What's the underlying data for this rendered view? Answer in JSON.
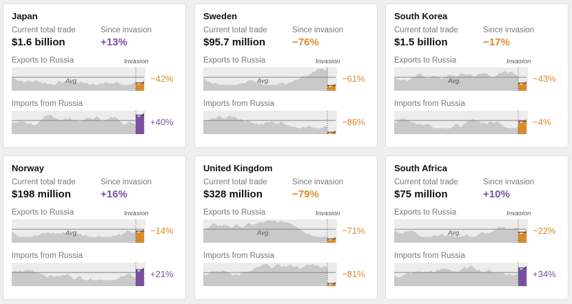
{
  "labels": {
    "current": "Current total trade",
    "since": "Since invasion",
    "exports": "Exports to Russia",
    "imports": "Imports from Russia",
    "invasion": "Invasion",
    "avg": "Avg."
  },
  "colors": {
    "up": "#7b50a3",
    "down": "#d98a2b",
    "area": "#c9c9c9",
    "bg": "#ececec",
    "avg": "#888888"
  },
  "cards": [
    {
      "country": "Japan",
      "total": "$1.6 billion",
      "since": "+13%",
      "exports_change": "−42%",
      "imports_change": "+40%"
    },
    {
      "country": "Sweden",
      "total": "$95.7 million",
      "since": "−76%",
      "exports_change": "−61%",
      "imports_change": "−86%"
    },
    {
      "country": "South Korea",
      "total": "$1.5 billion",
      "since": "−17%",
      "exports_change": "−43%",
      "imports_change": "−4%"
    },
    {
      "country": "Norway",
      "total": "$198 million",
      "since": "+16%",
      "exports_change": "−14%",
      "imports_change": "+21%"
    },
    {
      "country": "United Kingdom",
      "total": "$328 million",
      "since": "−79%",
      "exports_change": "−71%",
      "imports_change": "−81%"
    },
    {
      "country": "South Africa",
      "total": "$75 million",
      "since": "+10%",
      "exports_change": "−22%",
      "imports_change": "+34%"
    }
  ]
}
